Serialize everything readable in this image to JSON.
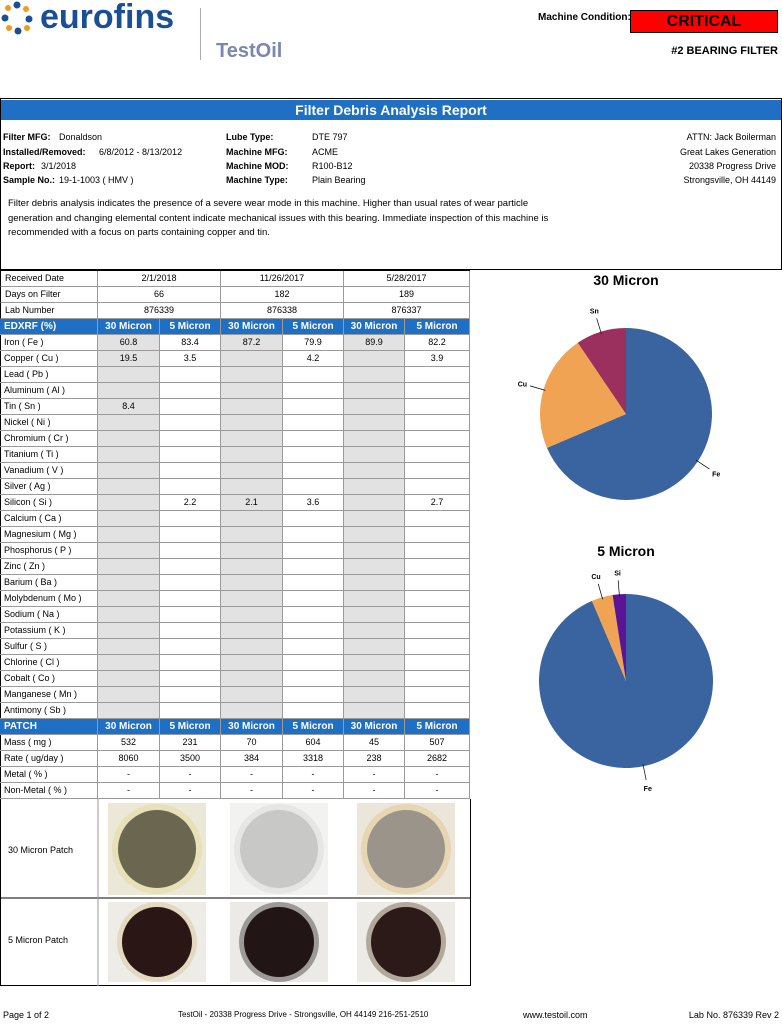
{
  "header": {
    "logo": "eurofins",
    "brand": "TestOil",
    "condition_label": "Machine Condition:",
    "condition": "CRITICAL",
    "component": "#2 BEARING FILTER"
  },
  "report_title": "Filter Debris Analysis Report",
  "info": {
    "left": [
      [
        "Filter MFG:",
        "Donaldson"
      ],
      [
        "Installed/Removed:",
        "6/8/2012 - 8/13/2012"
      ],
      [
        "Report:",
        "3/1/2018"
      ],
      [
        "Sample No.:",
        "19-1-1003 ( HMV )"
      ]
    ],
    "middle": [
      [
        "Lube Type:",
        "DTE 797"
      ],
      [
        "Machine MFG:",
        "ACME"
      ],
      [
        "Machine MOD:",
        "R100-B12"
      ],
      [
        "Machine Type:",
        "Plain Bearing"
      ]
    ],
    "address": [
      "ATTN:  Jack Boilerman",
      "Great Lakes Generation",
      "20338 Progress Drive",
      "Strongsville, OH 44149"
    ]
  },
  "summary": "Filter debris analysis indicates the presence of a severe wear mode in this machine. Higher than usual rates of wear particle generation and changing elemental content indicate mechanical issues with this bearing. Immediate inspection of this machine is recommended with a focus on parts containing copper and tin.",
  "table": {
    "top_rows": [
      {
        "label": "Received Date",
        "values": [
          "2/1/2018",
          "11/26/2017",
          "5/28/2017"
        ]
      },
      {
        "label": "Days on Filter",
        "values": [
          66,
          182,
          189
        ]
      },
      {
        "label": "Lab Number",
        "values": [
          876339,
          876338,
          876337
        ]
      }
    ],
    "edxrf": {
      "title": "EDXRF (%)",
      "columns": [
        "30 Micron",
        "5 Micron",
        "30 Micron",
        "5 Micron",
        "30 Micron",
        "5 Micron"
      ],
      "rows": [
        {
          "label": "Iron ( Fe )",
          "values": [
            60.8,
            83.4,
            87.2,
            79.9,
            89.9,
            82.2
          ]
        },
        {
          "label": "Copper ( Cu )",
          "values": [
            19.5,
            3.5,
            null,
            4.2,
            null,
            3.9
          ]
        },
        {
          "label": "Lead ( Pb )",
          "values": [
            null,
            null,
            null,
            null,
            null,
            null
          ]
        },
        {
          "label": "Aluminum ( Al )",
          "values": [
            null,
            null,
            null,
            null,
            null,
            null
          ]
        },
        {
          "label": "Tin ( Sn )",
          "values": [
            8.4,
            null,
            null,
            null,
            null,
            null
          ]
        },
        {
          "label": "Nickel ( Ni )",
          "values": [
            null,
            null,
            null,
            null,
            null,
            null
          ]
        },
        {
          "label": "Chromium ( Cr )",
          "values": [
            null,
            null,
            null,
            null,
            null,
            null
          ]
        },
        {
          "label": "Titanium ( Ti )",
          "values": [
            null,
            null,
            null,
            null,
            null,
            null
          ]
        },
        {
          "label": "Vanadium ( V )",
          "values": [
            null,
            null,
            null,
            null,
            null,
            null
          ]
        },
        {
          "label": "Silver ( Ag )",
          "values": [
            null,
            null,
            null,
            null,
            null,
            null
          ]
        },
        {
          "label": "Silicon ( Si )",
          "values": [
            null,
            2.2,
            2.1,
            3.6,
            null,
            2.7
          ]
        },
        {
          "label": "Calcium ( Ca )",
          "values": [
            null,
            null,
            null,
            null,
            null,
            null
          ]
        },
        {
          "label": "Magnesium ( Mg )",
          "values": [
            null,
            null,
            null,
            null,
            null,
            null
          ]
        },
        {
          "label": "Phosphorus ( P )",
          "values": [
            null,
            null,
            null,
            null,
            null,
            null
          ]
        },
        {
          "label": "Zinc ( Zn )",
          "values": [
            null,
            null,
            null,
            null,
            null,
            null
          ]
        },
        {
          "label": "Barium ( Ba )",
          "values": [
            null,
            null,
            null,
            null,
            null,
            null
          ]
        },
        {
          "label": "Molybdenum ( Mo )",
          "values": [
            null,
            null,
            null,
            null,
            null,
            null
          ]
        },
        {
          "label": "Sodium ( Na )",
          "values": [
            null,
            null,
            null,
            null,
            null,
            null
          ]
        },
        {
          "label": "Potassium ( K )",
          "values": [
            null,
            null,
            null,
            null,
            null,
            null
          ]
        },
        {
          "label": "Sulfur ( S )",
          "values": [
            null,
            null,
            null,
            null,
            null,
            null
          ]
        },
        {
          "label": "Chlorine ( Cl )",
          "values": [
            null,
            null,
            null,
            null,
            null,
            null
          ]
        },
        {
          "label": "Cobalt ( Co )",
          "values": [
            null,
            null,
            null,
            null,
            null,
            null
          ]
        },
        {
          "label": "Manganese ( Mn )",
          "values": [
            null,
            null,
            null,
            null,
            null,
            null
          ]
        },
        {
          "label": "Antimony ( Sb )",
          "values": [
            null,
            null,
            null,
            null,
            null,
            null
          ]
        }
      ]
    },
    "patch": {
      "title": "PATCH",
      "columns": [
        "30 Micron",
        "5 Micron",
        "30 Micron",
        "5 Micron",
        "30 Micron",
        "5 Micron"
      ],
      "rows": [
        {
          "label": "Mass ( mg )",
          "values": [
            532,
            231,
            70,
            604,
            45,
            507
          ]
        },
        {
          "label": "Rate ( ug/day )",
          "values": [
            8060,
            3500,
            384,
            3318,
            238,
            2682
          ]
        },
        {
          "label": "Metal ( % )",
          "values": [
            "-",
            "-",
            "-",
            "-",
            "-",
            "-"
          ]
        },
        {
          "label": "Non-Metal ( % )",
          "values": [
            "-",
            "-",
            "-",
            "-",
            "-",
            "-"
          ]
        }
      ]
    }
  },
  "patch_images": [
    "30 Micron Patch",
    "5 Micron Patch"
  ],
  "footer": {
    "page": "Page 1 of 2",
    "address": "TestOil -  20338 Progress Drive  -  Strongsville, OH 44149  216-251-2510",
    "web": "www.testoil.com",
    "lab": "Lab No. 876339 Rev 2"
  },
  "chart_data": [
    {
      "type": "pie",
      "title": "30 Micron",
      "categories": [
        "Fe",
        "Cu",
        "Sn"
      ],
      "values": [
        60.8,
        19.5,
        8.4
      ],
      "colors": [
        "#3a64a0",
        "#f0a453",
        "#9b2f5e"
      ]
    },
    {
      "type": "pie",
      "title": "5 Micron",
      "categories": [
        "Fe",
        "Cu",
        "Si"
      ],
      "values": [
        83.4,
        3.5,
        2.2
      ],
      "colors": [
        "#3a64a0",
        "#f0a453",
        "#5b1497"
      ]
    }
  ]
}
